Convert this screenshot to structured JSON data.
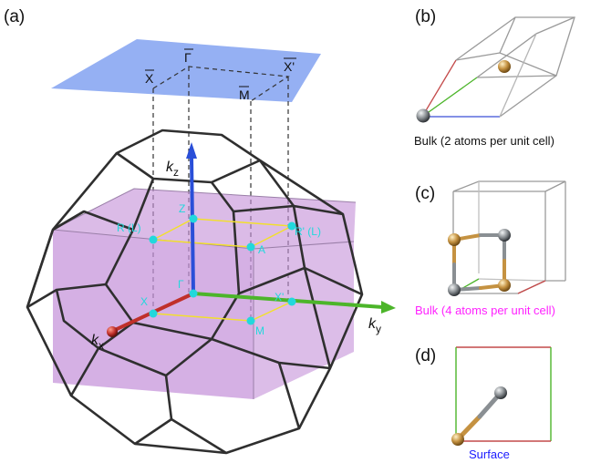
{
  "panels": {
    "a": "(a)",
    "b": "(b)",
    "c": "(c)",
    "d": "(d)"
  },
  "surface_labels": {
    "gamma_bar": "Γ",
    "x_bar": "X",
    "x_prime_bar": "X'",
    "m_bar": "M"
  },
  "axis_labels": {
    "kz": {
      "k": "k",
      "sub": "z"
    },
    "ky": {
      "k": "k",
      "sub": "y"
    },
    "kx": {
      "k": "k",
      "sub": "x"
    }
  },
  "points": {
    "z": "Z",
    "r_l": "R (L)",
    "r_prime_l": "R' (L)",
    "a": "A",
    "gamma": "Γ",
    "x": "X",
    "x_prime": "X'",
    "m": "M"
  },
  "captions": {
    "b": "Bulk (2 atoms per unit cell)",
    "c": "Bulk (4 atoms per unit cell)",
    "d": "Surface"
  },
  "colors": {
    "caption_c": "#ff22ff",
    "caption_d": "#1a1aff",
    "point": "#22d8dc",
    "surface_plane": "#8aa7f2",
    "prism": "#c591d9",
    "kz_axis": "#2a4fd8",
    "ky_axis": "#4cb52a",
    "kx_axis": "#c0302a",
    "atom_gold": "#c59241",
    "atom_gray": "#8a8f93"
  }
}
